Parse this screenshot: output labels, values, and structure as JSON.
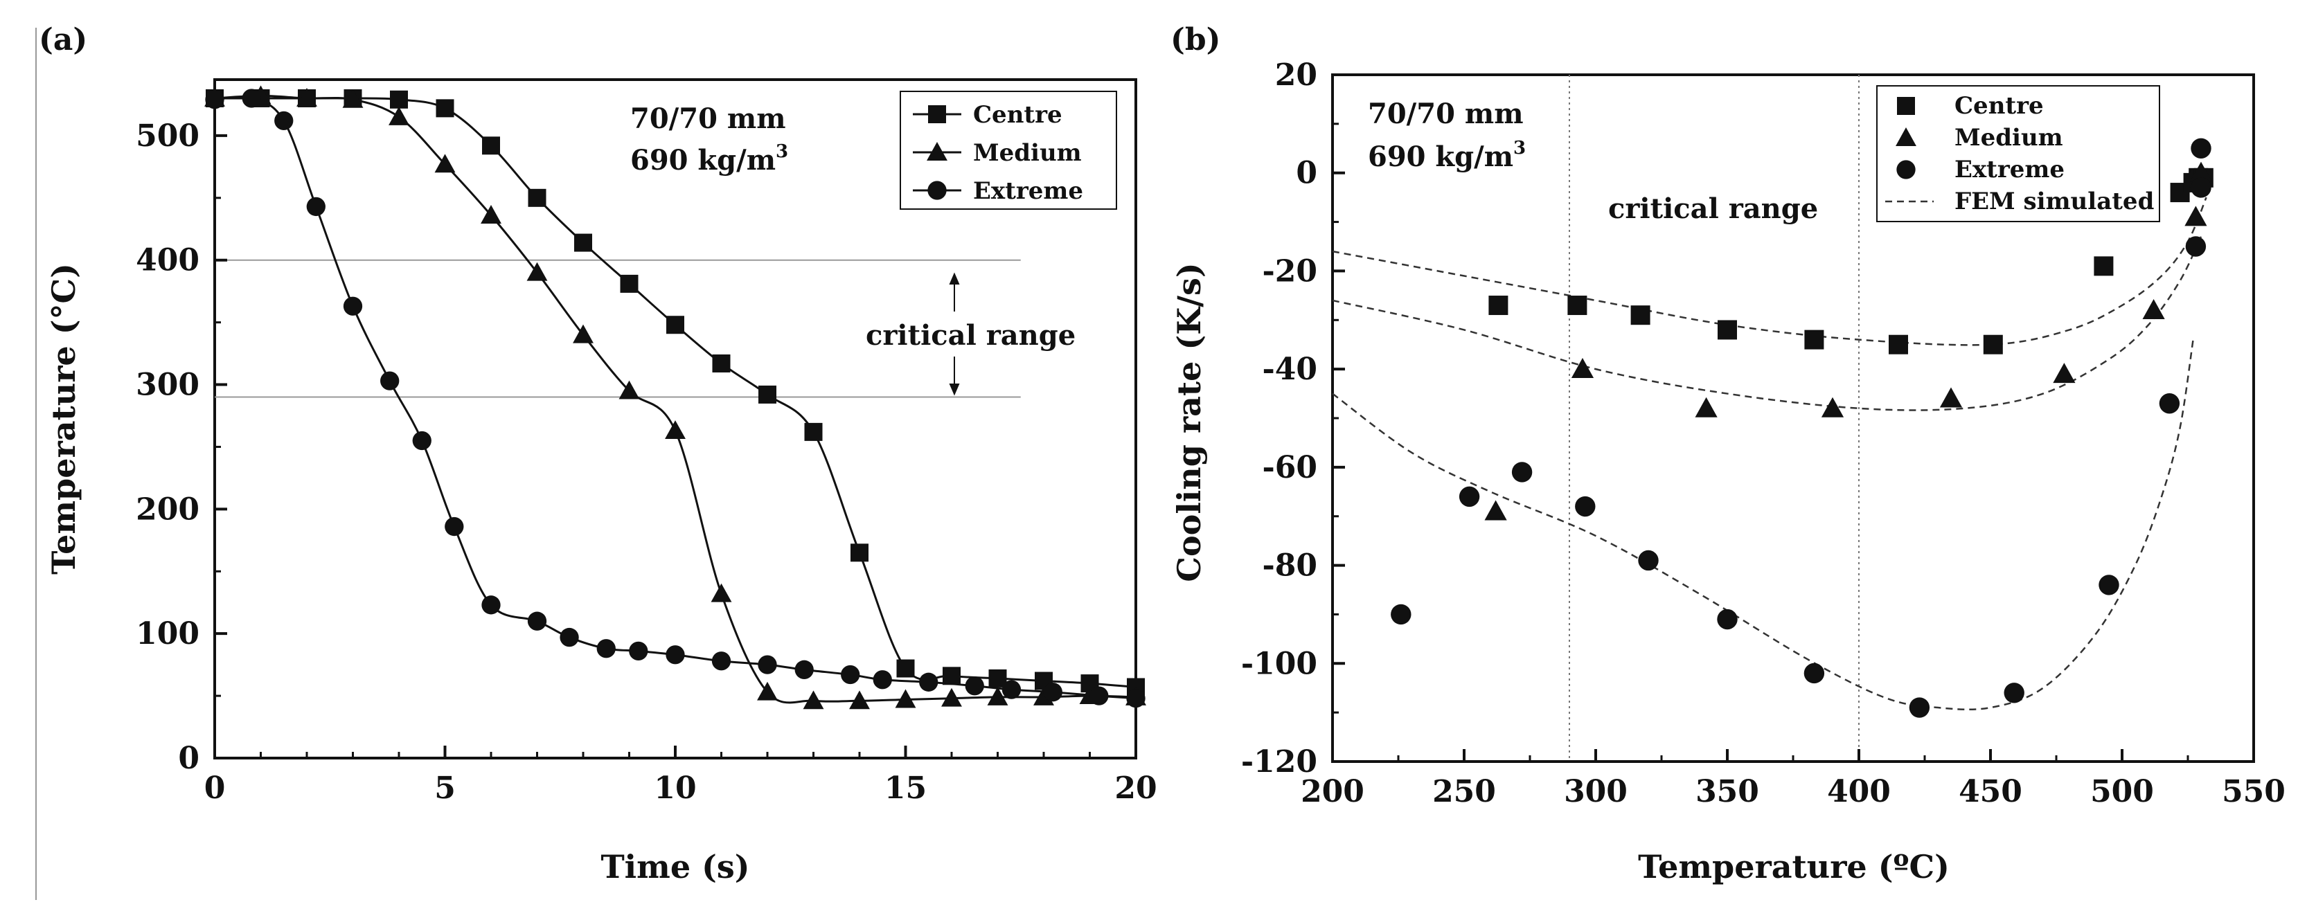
{
  "charts": [
    {
      "panel_label": "(a)",
      "annotations": {
        "sample_size": "70/70 mm",
        "density": "690 kg/m",
        "density_exp": "3",
        "critical_range": "critical range"
      }
    },
    {
      "panel_label": "(b)",
      "annotations": {
        "sample_size": "70/70 mm",
        "density": "690 kg/m",
        "density_exp": "3",
        "critical_range": "critical range"
      }
    }
  ],
  "chart_data": [
    {
      "type": "line",
      "title": "",
      "xlabel": "Time (s)",
      "ylabel": "Temperature (°C)",
      "xlim": [
        0,
        20
      ],
      "ylim": [
        0,
        545
      ],
      "xticks": [
        0,
        5,
        10,
        15,
        20
      ],
      "yticks": [
        0,
        100,
        200,
        300,
        400,
        500
      ],
      "legend_position": "top-right",
      "reference_lines_y": [
        400,
        290
      ],
      "series": [
        {
          "name": "Centre",
          "marker": "square",
          "points": [
            [
              0,
              530
            ],
            [
              1,
              530
            ],
            [
              2,
              530
            ],
            [
              3,
              530
            ],
            [
              4,
              529
            ],
            [
              5,
              522
            ],
            [
              6,
              492
            ],
            [
              7,
              450
            ],
            [
              8,
              414
            ],
            [
              9,
              381
            ],
            [
              10,
              348
            ],
            [
              11,
              317
            ],
            [
              12,
              292
            ],
            [
              13,
              262
            ],
            [
              14,
              165
            ],
            [
              15,
              72
            ],
            [
              16,
              66
            ],
            [
              17,
              64
            ],
            [
              18,
              62
            ],
            [
              19,
              60
            ],
            [
              20,
              57
            ]
          ]
        },
        {
          "name": "Medium",
          "marker": "triangle",
          "points": [
            [
              0,
              530
            ],
            [
              1,
              532
            ],
            [
              2,
              530
            ],
            [
              3,
              529
            ],
            [
              4,
              515
            ],
            [
              5,
              477
            ],
            [
              6,
              436
            ],
            [
              7,
              390
            ],
            [
              8,
              340
            ],
            [
              9,
              295
            ],
            [
              10,
              263
            ],
            [
              11,
              132
            ],
            [
              12,
              53
            ],
            [
              13,
              46
            ],
            [
              14,
              46
            ],
            [
              15,
              47
            ],
            [
              16,
              48
            ],
            [
              17,
              49
            ],
            [
              18,
              49
            ],
            [
              19,
              50
            ],
            [
              20,
              49
            ]
          ]
        },
        {
          "name": "Extreme",
          "marker": "circle",
          "points": [
            [
              0,
              529
            ],
            [
              0.8,
              530
            ],
            [
              1.5,
              512
            ],
            [
              2.2,
              443
            ],
            [
              3,
              363
            ],
            [
              3.8,
              303
            ],
            [
              4.5,
              255
            ],
            [
              5.2,
              186
            ],
            [
              6,
              123
            ],
            [
              7,
              110
            ],
            [
              7.7,
              97
            ],
            [
              8.5,
              88
            ],
            [
              9.2,
              86
            ],
            [
              10,
              83
            ],
            [
              11,
              78
            ],
            [
              12,
              75
            ],
            [
              12.8,
              71
            ],
            [
              13.8,
              67
            ],
            [
              14.5,
              63
            ],
            [
              15.5,
              61
            ],
            [
              16.5,
              58
            ],
            [
              17.3,
              55
            ],
            [
              18.2,
              53
            ],
            [
              19.2,
              50
            ],
            [
              20,
              48
            ]
          ]
        }
      ]
    },
    {
      "type": "scatter",
      "title": "",
      "xlabel": "Temperature (ºC)",
      "ylabel": "Cooling rate (K/s)",
      "xlim": [
        200,
        550
      ],
      "ylim": [
        -120,
        20
      ],
      "xticks": [
        200,
        250,
        300,
        350,
        400,
        450,
        500,
        550
      ],
      "yticks": [
        -120,
        -100,
        -80,
        -60,
        -40,
        -20,
        0,
        20
      ],
      "legend_position": "top-right",
      "reference_lines_x": [
        290,
        400
      ],
      "series": [
        {
          "name": "Centre",
          "marker": "square",
          "points": [
            [
              263,
              -27
            ],
            [
              293,
              -27
            ],
            [
              317,
              -29
            ],
            [
              350,
              -32
            ],
            [
              383,
              -34
            ],
            [
              415,
              -35
            ],
            [
              451,
              -35
            ],
            [
              493,
              -19
            ],
            [
              522,
              -4
            ],
            [
              527,
              -2
            ],
            [
              529,
              -1
            ],
            [
              531,
              -1
            ]
          ]
        },
        {
          "name": "Medium",
          "marker": "triangle",
          "points": [
            [
              262,
              -69
            ],
            [
              295,
              -40
            ],
            [
              342,
              -48
            ],
            [
              390,
              -48
            ],
            [
              435,
              -46
            ],
            [
              478,
              -41
            ],
            [
              512,
              -28
            ],
            [
              528,
              -9
            ],
            [
              530,
              0
            ]
          ]
        },
        {
          "name": "Extreme",
          "marker": "circle",
          "points": [
            [
              226,
              -90
            ],
            [
              252,
              -66
            ],
            [
              272,
              -61
            ],
            [
              296,
              -68
            ],
            [
              320,
              -79
            ],
            [
              350,
              -91
            ],
            [
              383,
              -102
            ],
            [
              423,
              -109
            ],
            [
              459,
              -106
            ],
            [
              495,
              -84
            ],
            [
              518,
              -47
            ],
            [
              528,
              -15
            ],
            [
              530,
              -3
            ],
            [
              530,
              5
            ]
          ]
        },
        {
          "name": "FEM simulated",
          "marker": "dashed-line",
          "curves": [
            [
              [
                200,
                -16
              ],
              [
                250,
                -21
              ],
              [
                300,
                -26
              ],
              [
                350,
                -31
              ],
              [
                400,
                -34
              ],
              [
                450,
                -35
              ],
              [
                480,
                -32
              ],
              [
                500,
                -27
              ],
              [
                515,
                -21
              ],
              [
                525,
                -14
              ],
              [
                532,
                -5
              ]
            ],
            [
              [
                200,
                -26
              ],
              [
                250,
                -32
              ],
              [
                300,
                -40
              ],
              [
                350,
                -45
              ],
              [
                400,
                -48
              ],
              [
                440,
                -48
              ],
              [
                470,
                -45
              ],
              [
                495,
                -38
              ],
              [
                510,
                -31
              ],
              [
                522,
                -22
              ],
              [
                530,
                -13
              ]
            ],
            [
              [
                200,
                -45
              ],
              [
                230,
                -57
              ],
              [
                260,
                -65
              ],
              [
                300,
                -74
              ],
              [
                340,
                -86
              ],
              [
                380,
                -99
              ],
              [
                410,
                -107
              ],
              [
                430,
                -109
              ],
              [
                450,
                -109
              ],
              [
                470,
                -105
              ],
              [
                490,
                -94
              ],
              [
                505,
                -80
              ],
              [
                515,
                -66
              ],
              [
                522,
                -52
              ],
              [
                527,
                -34
              ]
            ]
          ]
        }
      ]
    }
  ]
}
